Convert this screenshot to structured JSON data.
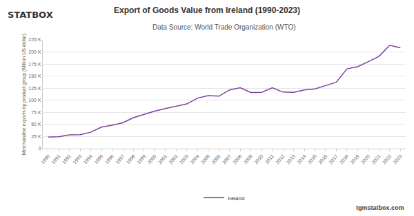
{
  "chart_data": {
    "type": "line",
    "title": "Export of Goods Value from Ireland (1990-2023)",
    "subtitle": "Data Source: World Trade Organization (WTO)",
    "y_label": "Merchandise exports by product group (Million US dollar)",
    "annotations": [
      "STATBOX",
      "tgmstatbox.com"
    ],
    "categories": [
      "1990",
      "1991",
      "1992",
      "1993",
      "1994",
      "1995",
      "1996",
      "1997",
      "1998",
      "1999",
      "2000",
      "2001",
      "2002",
      "2003",
      "2004",
      "2005",
      "2006",
      "2007",
      "2008",
      "2009",
      "2010",
      "2011",
      "2012",
      "2013",
      "2014",
      "2015",
      "2016",
      "2017",
      "2018",
      "2019",
      "2020",
      "2021",
      "2022",
      "2023"
    ],
    "series": [
      {
        "name": "Ireland",
        "color": "#7b3f9e",
        "values": [
          24000,
          24500,
          28500,
          29000,
          34000,
          44500,
          48500,
          53500,
          64000,
          71000,
          77500,
          83000,
          88000,
          92500,
          104500,
          109500,
          108500,
          121500,
          126000,
          116000,
          116500,
          126000,
          117000,
          116500,
          121500,
          123500,
          130500,
          137500,
          165000,
          169500,
          180000,
          191000,
          214000,
          208500
        ]
      }
    ],
    "ylim": [
      0,
      225000
    ],
    "yticks": [
      0,
      {
        "value": 25000,
        "label": "25 K"
      },
      {
        "value": 50000,
        "label": "50 K"
      },
      {
        "value": 75000,
        "label": "75 K"
      },
      {
        "value": 100000,
        "label": "100 K"
      },
      {
        "value": 125000,
        "label": "125 K"
      },
      {
        "value": 150000,
        "label": "150 K"
      },
      {
        "value": 175000,
        "label": "175 K"
      },
      {
        "value": 200000,
        "label": "200 K"
      },
      {
        "value": 225000,
        "label": "225 K"
      }
    ],
    "grid": true,
    "legend": "bottom"
  }
}
